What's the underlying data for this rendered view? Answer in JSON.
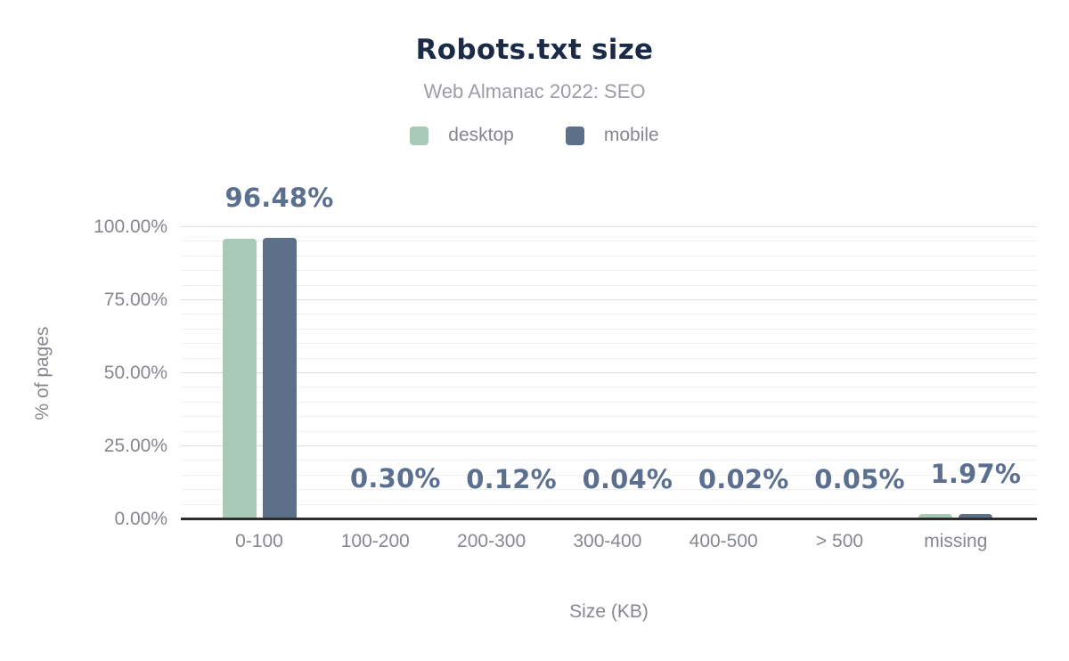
{
  "chart_data": {
    "type": "bar",
    "title": "Robots.txt size",
    "subtitle": "Web Almanac 2022: SEO",
    "xlabel": "Size (KB)",
    "ylabel": "% of pages",
    "categories": [
      "0-100",
      "100-200",
      "200-300",
      "300-400",
      "400-500",
      "> 500",
      "missing"
    ],
    "series": [
      {
        "name": "desktop",
        "color": "#a8c9b5",
        "values": [
          95.9,
          0.3,
          0.12,
          0.04,
          0.02,
          0.05,
          1.9
        ]
      },
      {
        "name": "mobile",
        "color": "#5d7089",
        "values": [
          96.48,
          0.3,
          0.12,
          0.04,
          0.02,
          0.05,
          1.97
        ]
      }
    ],
    "value_labels": [
      "96.48%",
      "0.30%",
      "0.12%",
      "0.04%",
      "0.02%",
      "0.05%",
      "1.97%"
    ],
    "value_label_color": "#5b6f8e",
    "y_ticks": [
      {
        "value": 0,
        "label": "0.00%"
      },
      {
        "value": 25,
        "label": "25.00%"
      },
      {
        "value": 50,
        "label": "50.00%"
      },
      {
        "value": 75,
        "label": "75.00%"
      },
      {
        "value": 100,
        "label": "100.00%"
      }
    ],
    "ylim": [
      0,
      100
    ],
    "grid": {
      "minor_every": 5,
      "major_every": 25,
      "grid_on": true
    },
    "legend_position": "top"
  }
}
